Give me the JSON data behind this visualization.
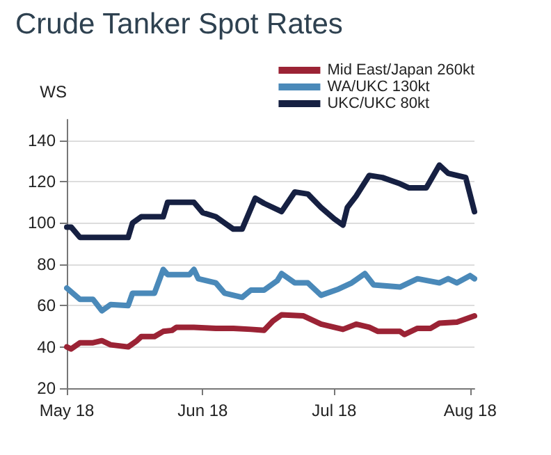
{
  "chart_data": {
    "type": "line",
    "title": "Crude Tanker Spot Rates",
    "ylabel": "WS",
    "xlim": [
      "2018-05-01",
      "2018-08-02"
    ],
    "xticks": [
      {
        "value": "2018-05-01",
        "label": "May 18"
      },
      {
        "value": "2018-06-01",
        "label": "Jun 18"
      },
      {
        "value": "2018-07-01",
        "label": "Jul 18"
      },
      {
        "value": "2018-08-01",
        "label": "Aug 18"
      }
    ],
    "ylim": [
      20,
      150
    ],
    "yticks": [
      20,
      40,
      60,
      80,
      100,
      120,
      140
    ],
    "grid": "y",
    "legend": "top right",
    "line_style": "solid",
    "series": [
      {
        "name": "Mid East/Japan 260kt",
        "color": "#9b2335",
        "x": [
          "2018-05-01",
          "2018-05-02",
          "2018-05-04",
          "2018-05-07",
          "2018-05-09",
          "2018-05-11",
          "2018-05-15",
          "2018-05-17",
          "2018-05-18",
          "2018-05-21",
          "2018-05-23",
          "2018-05-25",
          "2018-05-26",
          "2018-05-30",
          "2018-06-04",
          "2018-06-08",
          "2018-06-12",
          "2018-06-15",
          "2018-06-17",
          "2018-06-19",
          "2018-06-24",
          "2018-06-28",
          "2018-07-03",
          "2018-07-06",
          "2018-07-09",
          "2018-07-11",
          "2018-07-16",
          "2018-07-17",
          "2018-07-20",
          "2018-07-23",
          "2018-07-25",
          "2018-07-29",
          "2018-08-02"
        ],
        "values": [
          40,
          39,
          42,
          42,
          43,
          41,
          40,
          43,
          45,
          45,
          47.5,
          48,
          49.5,
          49.5,
          49,
          49,
          48.5,
          48,
          52.5,
          55.5,
          55,
          51,
          48.5,
          51,
          49.5,
          47.5,
          47.5,
          46,
          49,
          49,
          51.5,
          52,
          55
        ]
      },
      {
        "name": "WA/UKC 130kt",
        "color": "#4a89b9",
        "x": [
          "2018-05-01",
          "2018-05-04",
          "2018-05-07",
          "2018-05-09",
          "2018-05-11",
          "2018-05-15",
          "2018-05-16",
          "2018-05-21",
          "2018-05-23",
          "2018-05-24",
          "2018-05-29",
          "2018-05-30",
          "2018-05-31",
          "2018-06-04",
          "2018-06-06",
          "2018-06-10",
          "2018-06-12",
          "2018-06-15",
          "2018-06-18",
          "2018-06-19",
          "2018-06-22",
          "2018-06-25",
          "2018-06-28",
          "2018-07-02",
          "2018-07-05",
          "2018-07-08",
          "2018-07-10",
          "2018-07-16",
          "2018-07-20",
          "2018-07-25",
          "2018-07-27",
          "2018-07-29",
          "2018-08-01",
          "2018-08-02"
        ],
        "values": [
          68.5,
          63,
          63,
          57.5,
          60.5,
          60,
          66,
          66,
          77.5,
          75,
          75,
          77.5,
          73,
          71,
          66,
          64,
          67.5,
          67.5,
          72,
          75.5,
          71,
          71,
          65,
          68,
          71,
          75.5,
          70,
          69,
          73,
          71,
          73,
          71,
          74.5,
          73
        ]
      },
      {
        "name": "UKC/UKC 80kt",
        "color": "#162042",
        "x": [
          "2018-05-01",
          "2018-05-02",
          "2018-05-04",
          "2018-05-15",
          "2018-05-16",
          "2018-05-18",
          "2018-05-23",
          "2018-05-24",
          "2018-05-30",
          "2018-06-01",
          "2018-06-04",
          "2018-06-06",
          "2018-06-08",
          "2018-06-10",
          "2018-06-12",
          "2018-06-13",
          "2018-06-15",
          "2018-06-19",
          "2018-06-22",
          "2018-06-25",
          "2018-06-28",
          "2018-07-01",
          "2018-07-03",
          "2018-07-04",
          "2018-07-06",
          "2018-07-09",
          "2018-07-12",
          "2018-07-16",
          "2018-07-18",
          "2018-07-22",
          "2018-07-25",
          "2018-07-27",
          "2018-07-31",
          "2018-08-02"
        ],
        "values": [
          98,
          98,
          93,
          93,
          100,
          103,
          103,
          110,
          110,
          105,
          103,
          100,
          97,
          97,
          107,
          112,
          109.5,
          105.5,
          115,
          114,
          107.5,
          102,
          99,
          107.5,
          113,
          123,
          122,
          119,
          117,
          117,
          128,
          124,
          122,
          105.5
        ]
      }
    ]
  }
}
